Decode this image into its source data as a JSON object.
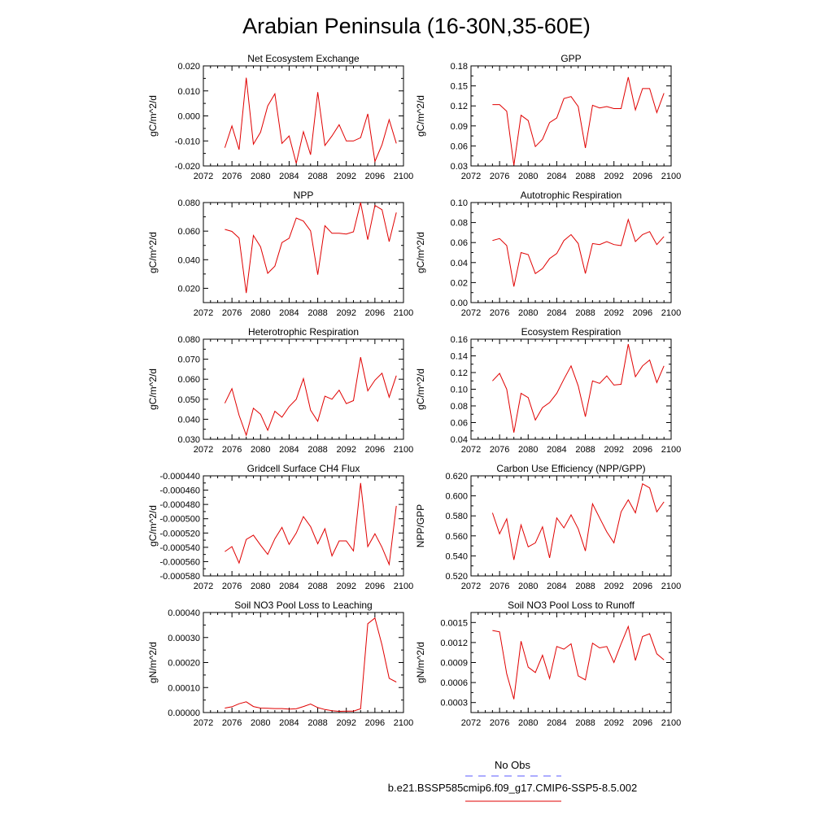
{
  "page": {
    "title": "Arabian Peninsula (16-30N,35-60E)"
  },
  "legend": {
    "obs_label": "No Obs",
    "obs_color": "#5a5aff",
    "model_label": "b.e21.BSSP585cmip6.f09_g17.CMIP6-SSP5-8.5.002",
    "model_color": "#e00000"
  },
  "chart_data": [
    {
      "type": "line",
      "title": "Net Ecosystem Exchange",
      "xlabel": "",
      "ylabel": "gC/m^2/d",
      "xlim": [
        2072,
        2100
      ],
      "ylim": [
        -0.02,
        0.02
      ],
      "xticks": [
        "2072",
        "2076",
        "2080",
        "2084",
        "2088",
        "2092",
        "2096",
        "2100"
      ],
      "yticks": [
        "-0.020",
        "-0.010",
        "0.000",
        "0.010",
        "0.020"
      ],
      "x": [
        2075,
        2076,
        2077,
        2078,
        2079,
        2080,
        2081,
        2082,
        2083,
        2084,
        2085,
        2086,
        2087,
        2088,
        2089,
        2090,
        2091,
        2092,
        2093,
        2094,
        2095,
        2096,
        2097,
        2098,
        2099
      ],
      "values": [
        -0.0127,
        -0.004,
        -0.0135,
        0.0153,
        -0.0113,
        -0.0065,
        0.004,
        0.0088,
        -0.011,
        -0.008,
        -0.019,
        -0.0063,
        -0.0155,
        0.0095,
        -0.0118,
        -0.008,
        -0.0035,
        -0.01,
        -0.01,
        -0.0087,
        0.0008,
        -0.0182,
        -0.0115,
        -0.0015,
        -0.011
      ]
    },
    {
      "type": "line",
      "title": "GPP",
      "xlabel": "",
      "ylabel": "gC/m^2/d",
      "xlim": [
        2072,
        2100
      ],
      "ylim": [
        0.03,
        0.18
      ],
      "xticks": [
        "2072",
        "2076",
        "2080",
        "2084",
        "2088",
        "2092",
        "2096",
        "2100"
      ],
      "yticks": [
        "0.03",
        "0.06",
        "0.09",
        "0.12",
        "0.15",
        "0.18"
      ],
      "x": [
        2075,
        2076,
        2077,
        2078,
        2079,
        2080,
        2081,
        2082,
        2083,
        2084,
        2085,
        2086,
        2087,
        2088,
        2089,
        2090,
        2091,
        2092,
        2093,
        2094,
        2095,
        2096,
        2097,
        2098,
        2099
      ],
      "values": [
        0.122,
        0.122,
        0.112,
        0.031,
        0.106,
        0.098,
        0.059,
        0.07,
        0.095,
        0.102,
        0.131,
        0.134,
        0.119,
        0.057,
        0.121,
        0.117,
        0.119,
        0.116,
        0.116,
        0.163,
        0.114,
        0.146,
        0.146,
        0.11,
        0.139
      ]
    },
    {
      "type": "line",
      "title": "NPP",
      "xlabel": "",
      "ylabel": "gC/m^2/d",
      "xlim": [
        2072,
        2100
      ],
      "ylim": [
        0.01,
        0.08
      ],
      "xticks": [
        "2072",
        "2076",
        "2080",
        "2084",
        "2088",
        "2092",
        "2096",
        "2100"
      ],
      "yticks": [
        "0.020",
        "0.040",
        "0.060",
        "0.080"
      ],
      "x": [
        2075,
        2076,
        2077,
        2078,
        2079,
        2080,
        2081,
        2082,
        2083,
        2084,
        2085,
        2086,
        2087,
        2088,
        2089,
        2090,
        2091,
        2092,
        2093,
        2094,
        2095,
        2096,
        2097,
        2098,
        2099
      ],
      "values": [
        0.0612,
        0.0598,
        0.0552,
        0.0167,
        0.057,
        0.049,
        0.0305,
        0.0355,
        0.052,
        0.055,
        0.0692,
        0.067,
        0.0602,
        0.0295,
        0.0638,
        0.0585,
        0.0585,
        0.058,
        0.0595,
        0.08,
        0.054,
        0.078,
        0.075,
        0.0527,
        0.073
      ]
    },
    {
      "type": "line",
      "title": "Autotrophic Respiration",
      "xlabel": "",
      "ylabel": "gC/m^2/d",
      "xlim": [
        2072,
        2100
      ],
      "ylim": [
        0.0,
        0.1
      ],
      "xticks": [
        "2072",
        "2076",
        "2080",
        "2084",
        "2088",
        "2092",
        "2096",
        "2100"
      ],
      "yticks": [
        "0.00",
        "0.02",
        "0.04",
        "0.06",
        "0.08",
        "0.10"
      ],
      "x": [
        2075,
        2076,
        2077,
        2078,
        2079,
        2080,
        2081,
        2082,
        2083,
        2084,
        2085,
        2086,
        2087,
        2088,
        2089,
        2090,
        2091,
        2092,
        2093,
        2094,
        2095,
        2096,
        2097,
        2098,
        2099
      ],
      "values": [
        0.062,
        0.064,
        0.057,
        0.016,
        0.05,
        0.048,
        0.029,
        0.034,
        0.044,
        0.049,
        0.062,
        0.068,
        0.059,
        0.029,
        0.059,
        0.058,
        0.061,
        0.058,
        0.057,
        0.083,
        0.061,
        0.068,
        0.071,
        0.058,
        0.066
      ]
    },
    {
      "type": "line",
      "title": "Heterotrophic Respiration",
      "xlabel": "",
      "ylabel": "gC/m^2/d",
      "xlim": [
        2072,
        2100
      ],
      "ylim": [
        0.03,
        0.08
      ],
      "xticks": [
        "2072",
        "2076",
        "2080",
        "2084",
        "2088",
        "2092",
        "2096",
        "2100"
      ],
      "yticks": [
        "0.030",
        "0.040",
        "0.050",
        "0.060",
        "0.070",
        "0.080"
      ],
      "x": [
        2075,
        2076,
        2077,
        2078,
        2079,
        2080,
        2081,
        2082,
        2083,
        2084,
        2085,
        2086,
        2087,
        2088,
        2089,
        2090,
        2091,
        2092,
        2093,
        2094,
        2095,
        2096,
        2097,
        2098,
        2099
      ],
      "values": [
        0.048,
        0.0553,
        0.042,
        0.032,
        0.0455,
        0.0425,
        0.0345,
        0.044,
        0.041,
        0.0463,
        0.05,
        0.0603,
        0.0445,
        0.039,
        0.0515,
        0.05,
        0.0545,
        0.0478,
        0.0493,
        0.071,
        0.0542,
        0.0595,
        0.063,
        0.051,
        0.0618
      ]
    },
    {
      "type": "line",
      "title": "Ecosystem Respiration",
      "xlabel": "",
      "ylabel": "gC/m^2/d",
      "xlim": [
        2072,
        2100
      ],
      "ylim": [
        0.04,
        0.16
      ],
      "xticks": [
        "2072",
        "2076",
        "2080",
        "2084",
        "2088",
        "2092",
        "2096",
        "2100"
      ],
      "yticks": [
        "0.04",
        "0.06",
        "0.08",
        "0.10",
        "0.12",
        "0.14",
        "0.16"
      ],
      "x": [
        2075,
        2076,
        2077,
        2078,
        2079,
        2080,
        2081,
        2082,
        2083,
        2084,
        2085,
        2086,
        2087,
        2088,
        2089,
        2090,
        2091,
        2092,
        2093,
        2094,
        2095,
        2096,
        2097,
        2098,
        2099
      ],
      "values": [
        0.11,
        0.119,
        0.1,
        0.048,
        0.095,
        0.09,
        0.063,
        0.078,
        0.084,
        0.095,
        0.112,
        0.128,
        0.104,
        0.067,
        0.11,
        0.107,
        0.116,
        0.105,
        0.106,
        0.154,
        0.115,
        0.128,
        0.135,
        0.108,
        0.128
      ]
    },
    {
      "type": "line",
      "title": "Gridcell Surface CH4 Flux",
      "xlabel": "",
      "ylabel": "gC/m^2/d",
      "xlim": [
        2072,
        2100
      ],
      "ylim": [
        -0.00058,
        -0.00044
      ],
      "xticks": [
        "2072",
        "2076",
        "2080",
        "2084",
        "2088",
        "2092",
        "2096",
        "2100"
      ],
      "yticks": [
        "-0.000580",
        "-0.000560",
        "-0.000540",
        "-0.000520",
        "-0.000500",
        "-0.000480",
        "-0.000460",
        "-0.000440"
      ],
      "x": [
        2075,
        2076,
        2077,
        2078,
        2079,
        2080,
        2081,
        2082,
        2083,
        2084,
        2085,
        2086,
        2087,
        2088,
        2089,
        2090,
        2091,
        2092,
        2093,
        2094,
        2095,
        2096,
        2097,
        2098,
        2099
      ],
      "values": [
        -0.000546,
        -0.000539,
        -0.000562,
        -0.000529,
        -0.000523,
        -0.000537,
        -0.00055,
        -0.000528,
        -0.000512,
        -0.000536,
        -0.00052,
        -0.000497,
        -0.000511,
        -0.000535,
        -0.000514,
        -0.000552,
        -0.000531,
        -0.000531,
        -0.000545,
        -0.00045,
        -0.000539,
        -0.000521,
        -0.00054,
        -0.000564,
        -0.000482
      ]
    },
    {
      "type": "line",
      "title": "Carbon Use Efficiency (NPP/GPP)",
      "xlabel": "",
      "ylabel": "NPP/GPP",
      "xlim": [
        2072,
        2100
      ],
      "ylim": [
        0.52,
        0.62
      ],
      "xticks": [
        "2072",
        "2076",
        "2080",
        "2084",
        "2088",
        "2092",
        "2096",
        "2100"
      ],
      "yticks": [
        "0.520",
        "0.540",
        "0.560",
        "0.580",
        "0.600",
        "0.620"
      ],
      "x": [
        2075,
        2076,
        2077,
        2078,
        2079,
        2080,
        2081,
        2082,
        2083,
        2084,
        2085,
        2086,
        2087,
        2088,
        2089,
        2090,
        2091,
        2092,
        2093,
        2094,
        2095,
        2096,
        2097,
        2098,
        2099
      ],
      "values": [
        0.583,
        0.562,
        0.577,
        0.536,
        0.571,
        0.549,
        0.553,
        0.569,
        0.538,
        0.578,
        0.568,
        0.581,
        0.567,
        0.545,
        0.592,
        0.578,
        0.564,
        0.553,
        0.584,
        0.596,
        0.583,
        0.612,
        0.608,
        0.584,
        0.594
      ]
    },
    {
      "type": "line",
      "title": "Soil NO3 Pool Loss to Leaching",
      "xlabel": "",
      "ylabel": "gN/m^2/d",
      "xlim": [
        2072,
        2100
      ],
      "ylim": [
        0.0,
        0.0004
      ],
      "xticks": [
        "2072",
        "2076",
        "2080",
        "2084",
        "2088",
        "2092",
        "2096",
        "2100"
      ],
      "yticks": [
        "0.00000",
        "0.00010",
        "0.00020",
        "0.00030",
        "0.00040"
      ],
      "x": [
        2075,
        2076,
        2077,
        2078,
        2079,
        2080,
        2081,
        2082,
        2083,
        2084,
        2085,
        2086,
        2087,
        2088,
        2089,
        2090,
        2091,
        2092,
        2093,
        2094,
        2095,
        2096,
        2097,
        2098,
        2099
      ],
      "values": [
        1.8e-05,
        2.3e-05,
        3.5e-05,
        4.3e-05,
        2.4e-05,
        1.8e-05,
        1.7e-05,
        1.6e-05,
        1.6e-05,
        1.4e-05,
        1.5e-05,
        2.4e-05,
        3.4e-05,
        2e-05,
        1.2e-05,
        7e-06,
        5e-06,
        6e-06,
        6e-06,
        1.5e-05,
        0.000355,
        0.000378,
        0.00027,
        0.000137,
        0.000122
      ]
    },
    {
      "type": "line",
      "title": "Soil NO3 Pool Loss to Runoff",
      "xlabel": "",
      "ylabel": "gN/m^2/d",
      "xlim": [
        2072,
        2100
      ],
      "ylim": [
        0.00015,
        0.00165
      ],
      "xticks": [
        "2072",
        "2076",
        "2080",
        "2084",
        "2088",
        "2092",
        "2096",
        "2100"
      ],
      "yticks": [
        "0.0003",
        "0.0006",
        "0.0009",
        "0.0012",
        "0.0015"
      ],
      "x": [
        2075,
        2076,
        2077,
        2078,
        2079,
        2080,
        2081,
        2082,
        2083,
        2084,
        2085,
        2086,
        2087,
        2088,
        2089,
        2090,
        2091,
        2092,
        2093,
        2094,
        2095,
        2096,
        2097,
        2098,
        2099
      ],
      "values": [
        0.00138,
        0.00136,
        0.00073,
        0.00035,
        0.00122,
        0.00083,
        0.00075,
        0.00101,
        0.00066,
        0.00114,
        0.0011,
        0.00118,
        0.0007,
        0.00064,
        0.00119,
        0.00112,
        0.00114,
        0.0009,
        0.00118,
        0.00144,
        0.00093,
        0.00129,
        0.00133,
        0.00103,
        0.00094
      ]
    }
  ]
}
